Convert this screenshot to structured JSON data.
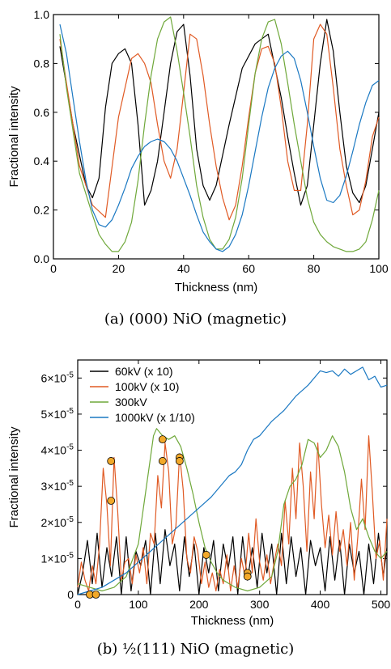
{
  "chart_data": [
    {
      "type": "line",
      "caption": "(a) (000) NiO (magnetic)",
      "xlabel": "Thickness (nm)",
      "ylabel": "Fractional intensity",
      "xlim": [
        0,
        100
      ],
      "ylim": [
        0,
        1.0
      ],
      "xticks": [
        0,
        20,
        40,
        60,
        80,
        100
      ],
      "xtick_labels": [
        "0",
        "20",
        "40",
        "60",
        "80",
        "100"
      ],
      "yticks": [
        0,
        0.2,
        0.4,
        0.6,
        0.8,
        1.0
      ],
      "ytick_labels": [
        "0.0",
        "0.2",
        "0.4",
        "0.6",
        "0.8",
        "1.0"
      ],
      "grid": false,
      "legend": null,
      "series": [
        {
          "color": "#000000",
          "x": [
            2,
            6,
            10,
            12,
            14,
            16,
            18,
            20,
            22,
            24,
            26,
            28,
            30,
            32,
            34,
            36,
            38,
            40,
            42,
            44,
            46,
            48,
            50,
            54,
            58,
            62,
            66,
            70,
            72,
            74,
            76,
            78,
            80,
            82,
            84,
            86,
            88,
            90,
            92,
            94,
            96,
            98,
            100
          ],
          "y": [
            0.87,
            0.55,
            0.3,
            0.25,
            0.33,
            0.62,
            0.8,
            0.84,
            0.86,
            0.8,
            0.55,
            0.22,
            0.28,
            0.4,
            0.6,
            0.8,
            0.93,
            0.96,
            0.75,
            0.45,
            0.3,
            0.24,
            0.3,
            0.55,
            0.78,
            0.88,
            0.92,
            0.66,
            0.5,
            0.35,
            0.22,
            0.3,
            0.55,
            0.8,
            0.98,
            0.85,
            0.6,
            0.38,
            0.27,
            0.23,
            0.3,
            0.45,
            0.6
          ]
        },
        {
          "color": "#e05a24",
          "x": [
            2,
            4,
            8,
            12,
            16,
            20,
            24,
            26,
            28,
            30,
            32,
            34,
            36,
            38,
            40,
            42,
            44,
            46,
            48,
            50,
            52,
            54,
            56,
            58,
            60,
            62,
            64,
            66,
            68,
            70,
            72,
            74,
            76,
            78,
            80,
            82,
            84,
            86,
            88,
            90,
            92,
            94,
            96,
            98,
            100
          ],
          "y": [
            0.9,
            0.72,
            0.38,
            0.22,
            0.17,
            0.58,
            0.82,
            0.84,
            0.8,
            0.72,
            0.55,
            0.4,
            0.33,
            0.45,
            0.68,
            0.92,
            0.9,
            0.75,
            0.55,
            0.38,
            0.25,
            0.16,
            0.22,
            0.38,
            0.58,
            0.76,
            0.86,
            0.87,
            0.8,
            0.62,
            0.4,
            0.28,
            0.28,
            0.55,
            0.9,
            0.96,
            0.92,
            0.7,
            0.45,
            0.3,
            0.18,
            0.2,
            0.32,
            0.5,
            0.58
          ]
        },
        {
          "color": "#6fa83a",
          "x": [
            2,
            4,
            8,
            12,
            14,
            16,
            18,
            20,
            22,
            24,
            26,
            28,
            30,
            32,
            34,
            36,
            38,
            40,
            42,
            44,
            46,
            48,
            50,
            52,
            54,
            56,
            58,
            60,
            62,
            64,
            66,
            68,
            70,
            72,
            74,
            76,
            78,
            80,
            82,
            84,
            86,
            88,
            90,
            92,
            94,
            96,
            98,
            100
          ],
          "y": [
            0.92,
            0.7,
            0.35,
            0.18,
            0.1,
            0.06,
            0.03,
            0.03,
            0.07,
            0.15,
            0.32,
            0.55,
            0.75,
            0.9,
            0.97,
            0.99,
            0.85,
            0.68,
            0.5,
            0.3,
            0.17,
            0.08,
            0.04,
            0.04,
            0.08,
            0.17,
            0.33,
            0.55,
            0.76,
            0.9,
            0.97,
            0.98,
            0.88,
            0.72,
            0.55,
            0.4,
            0.25,
            0.15,
            0.1,
            0.07,
            0.05,
            0.04,
            0.03,
            0.03,
            0.04,
            0.07,
            0.16,
            0.28
          ]
        },
        {
          "color": "#1a78c2",
          "x": [
            2,
            4,
            6,
            8,
            10,
            12,
            14,
            16,
            18,
            20,
            22,
            24,
            26,
            28,
            30,
            32,
            34,
            36,
            38,
            40,
            42,
            44,
            46,
            48,
            50,
            52,
            54,
            56,
            58,
            60,
            62,
            64,
            66,
            68,
            70,
            72,
            74,
            76,
            78,
            80,
            82,
            84,
            86,
            88,
            90,
            92,
            94,
            96,
            98,
            100
          ],
          "y": [
            0.96,
            0.84,
            0.66,
            0.48,
            0.32,
            0.2,
            0.14,
            0.13,
            0.16,
            0.22,
            0.29,
            0.37,
            0.42,
            0.46,
            0.48,
            0.49,
            0.48,
            0.45,
            0.4,
            0.33,
            0.26,
            0.18,
            0.11,
            0.07,
            0.04,
            0.03,
            0.05,
            0.1,
            0.18,
            0.3,
            0.44,
            0.58,
            0.7,
            0.78,
            0.83,
            0.85,
            0.82,
            0.73,
            0.6,
            0.46,
            0.33,
            0.24,
            0.23,
            0.26,
            0.34,
            0.44,
            0.55,
            0.64,
            0.71,
            0.73
          ]
        }
      ]
    },
    {
      "type": "line",
      "caption": "(b) ½(111) NiO (magnetic)",
      "xlabel": "Thickness (nm)",
      "ylabel": "Fractional intensity",
      "xlim": [
        0,
        510
      ],
      "ylim": [
        0,
        6.5e-05
      ],
      "xticks": [
        0,
        100,
        200,
        300,
        400,
        500
      ],
      "xtick_labels": [
        "0",
        "100",
        "200",
        "300",
        "400",
        "500"
      ],
      "yticks": [
        0,
        1e-05,
        2e-05,
        3e-05,
        4e-05,
        5e-05,
        6e-05
      ],
      "ytick_labels": [
        {
          "mant": "0",
          "exp": ""
        },
        {
          "mant": "1×10",
          "exp": "-5"
        },
        {
          "mant": "2×10",
          "exp": "-5"
        },
        {
          "mant": "3×10",
          "exp": "-5"
        },
        {
          "mant": "4×10",
          "exp": "-5"
        },
        {
          "mant": "5×10",
          "exp": "-5"
        },
        {
          "mant": "6×10",
          "exp": "-5"
        }
      ],
      "grid": false,
      "legend": "top-left",
      "series": [
        {
          "name": "60kV (x 10)",
          "color": "#000000",
          "x": [
            0,
            8,
            16,
            24,
            32,
            40,
            48,
            56,
            64,
            72,
            80,
            88,
            96,
            104,
            112,
            120,
            128,
            136,
            144,
            152,
            160,
            168,
            176,
            184,
            192,
            200,
            208,
            216,
            224,
            232,
            240,
            248,
            256,
            264,
            272,
            280,
            288,
            296,
            304,
            312,
            320,
            328,
            336,
            344,
            352,
            360,
            368,
            376,
            384,
            392,
            400,
            408,
            416,
            424,
            432,
            440,
            448,
            456,
            464,
            472,
            480,
            488,
            496,
            504,
            510
          ],
          "y": [
            0,
            6e-06,
            1.5e-05,
            3e-06,
            1.7e-05,
            2e-06,
            1.3e-05,
            5e-06,
            1.6e-05,
            0,
            1.6e-05,
            1e-06,
            1.2e-05,
            8e-06,
            1.5e-05,
            0,
            1.7e-05,
            3e-06,
            1.8e-05,
            8e-06,
            1.4e-05,
            1e-06,
            1.6e-05,
            5e-06,
            1.4e-05,
            0,
            1.3e-05,
            6e-06,
            1.5e-05,
            1e-06,
            1.4e-05,
            7e-06,
            1.6e-05,
            0,
            1.6e-05,
            4e-06,
            1.3e-05,
            2e-06,
            1.7e-05,
            6e-06,
            1.4e-05,
            0,
            1.7e-05,
            3e-06,
            1.6e-05,
            5e-06,
            1.3e-05,
            0,
            1.5e-05,
            8e-06,
            1.3e-05,
            1e-06,
            1.6e-05,
            4e-06,
            1.5e-05,
            0,
            1.4e-05,
            6e-06,
            1.2e-05,
            0,
            1.4e-05,
            3e-06,
            1.7e-05,
            5e-06,
            1.3e-05
          ]
        },
        {
          "name": "100kV (x 10)",
          "color": "#e05a24",
          "x": [
            0,
            6,
            12,
            18,
            24,
            30,
            36,
            42,
            48,
            54,
            60,
            66,
            72,
            78,
            84,
            90,
            96,
            102,
            108,
            114,
            120,
            126,
            132,
            138,
            144,
            150,
            156,
            162,
            168,
            174,
            180,
            186,
            192,
            198,
            204,
            210,
            216,
            222,
            228,
            234,
            240,
            246,
            252,
            258,
            264,
            270,
            276,
            282,
            288,
            294,
            300,
            306,
            312,
            318,
            324,
            330,
            336,
            342,
            348,
            354,
            360,
            366,
            372,
            378,
            384,
            390,
            396,
            402,
            408,
            414,
            420,
            426,
            432,
            438,
            444,
            450,
            456,
            462,
            468,
            474,
            480,
            486,
            492,
            498,
            504,
            510
          ],
          "y": [
            2e-06,
            9e-06,
            4e-06,
            1e-06,
            8e-06,
            3e-06,
            1.4e-05,
            3.5e-05,
            2.5e-05,
            8e-06,
            3.8e-05,
            2.3e-05,
            4e-06,
            9e-06,
            1e-05,
            3e-06,
            1.1e-05,
            6e-06,
            1.3e-05,
            3e-06,
            1.7e-05,
            1.4e-05,
            3.3e-05,
            2.4e-05,
            4.2e-05,
            3.4e-05,
            1.4e-05,
            1.9e-05,
            3.9e-05,
            2.9e-05,
            1e-05,
            6e-06,
            1.6e-05,
            1.2e-05,
            3e-06,
            9e-06,
            2e-06,
            6e-06,
            1e-06,
            7e-06,
            3e-06,
            1.1e-05,
            1e-06,
            8e-06,
            2e-06,
            1e-05,
            5e-06,
            1.7e-05,
            6e-06,
            2.1e-05,
            9e-06,
            4e-06,
            1.1e-05,
            3e-06,
            9e-06,
            1.4e-05,
            8e-06,
            2.6e-05,
            1.4e-05,
            3.5e-05,
            2.1e-05,
            4.2e-05,
            3e-05,
            1.2e-05,
            3.4e-05,
            2.1e-05,
            4.2e-05,
            2.5e-05,
            1.3e-05,
            2.2e-05,
            1.1e-05,
            2.3e-05,
            1.2e-05,
            1.8e-05,
            8e-06,
            2e-05,
            4e-06,
            1.6e-05,
            3.2e-05,
            1.8e-05,
            4.4e-05,
            2.8e-05,
            1e-05,
            1.5e-05,
            4e-06,
            2.1e-05
          ]
        },
        {
          "name": "300kV",
          "color": "#6fa83a",
          "x": [
            0,
            20,
            40,
            60,
            80,
            100,
            110,
            120,
            125,
            130,
            140,
            150,
            160,
            170,
            180,
            190,
            200,
            210,
            220,
            230,
            240,
            260,
            280,
            300,
            320,
            330,
            340,
            350,
            360,
            370,
            380,
            390,
            400,
            410,
            420,
            430,
            440,
            450,
            460,
            470,
            480,
            490,
            500,
            510
          ],
          "y": [
            3e-06,
            2e-06,
            1e-06,
            2e-06,
            5e-06,
            1.4e-05,
            2.6e-05,
            3.8e-05,
            4.4e-05,
            4.6e-05,
            4.4e-05,
            4.3e-05,
            4.4e-05,
            4.1e-05,
            3.5e-05,
            2.8e-05,
            2e-05,
            1.3e-05,
            9e-06,
            6e-06,
            4e-06,
            2e-06,
            1e-06,
            2e-06,
            5e-06,
            1.2e-05,
            2.5e-05,
            3e-05,
            3.2e-05,
            3.6e-05,
            4.3e-05,
            4.2e-05,
            3.8e-05,
            4e-05,
            4.4e-05,
            4.1e-05,
            3.4e-05,
            2.4e-05,
            1.8e-05,
            2.1e-05,
            1.6e-05,
            1.2e-05,
            1e-05,
            1.2e-05
          ]
        },
        {
          "name": "1000kV (x 1/10)",
          "color": "#1a78c2",
          "x": [
            0,
            20,
            40,
            60,
            80,
            100,
            120,
            140,
            160,
            180,
            200,
            220,
            240,
            250,
            260,
            270,
            280,
            290,
            300,
            320,
            340,
            360,
            380,
            400,
            410,
            420,
            430,
            440,
            450,
            460,
            470,
            480,
            490,
            500,
            510
          ],
          "y": [
            0,
            1e-06,
            2e-06,
            4e-06,
            6e-06,
            9e-06,
            1.2e-05,
            1.5e-05,
            1.8e-05,
            2.1e-05,
            2.4e-05,
            2.7e-05,
            3.1e-05,
            3.3e-05,
            3.4e-05,
            3.6e-05,
            4e-05,
            4.3e-05,
            4.4e-05,
            4.8e-05,
            5.1e-05,
            5.5e-05,
            5.8e-05,
            6.2e-05,
            6.15e-05,
            6.2e-05,
            6.05e-05,
            6.25e-05,
            6.1e-05,
            6.2e-05,
            6.3e-05,
            5.95e-05,
            6.05e-05,
            5.75e-05,
            5.8e-05
          ]
        }
      ],
      "markers": {
        "color": "#f2a92a",
        "x": [
          20,
          30,
          55,
          55,
          140,
          140,
          168,
          168,
          212,
          280,
          280
        ],
        "y": [
          0,
          0,
          3.7e-05,
          2.6e-05,
          4.3e-05,
          3.7e-05,
          3.8e-05,
          3.7e-05,
          1.1e-05,
          6e-06,
          5e-06
        ]
      }
    }
  ]
}
